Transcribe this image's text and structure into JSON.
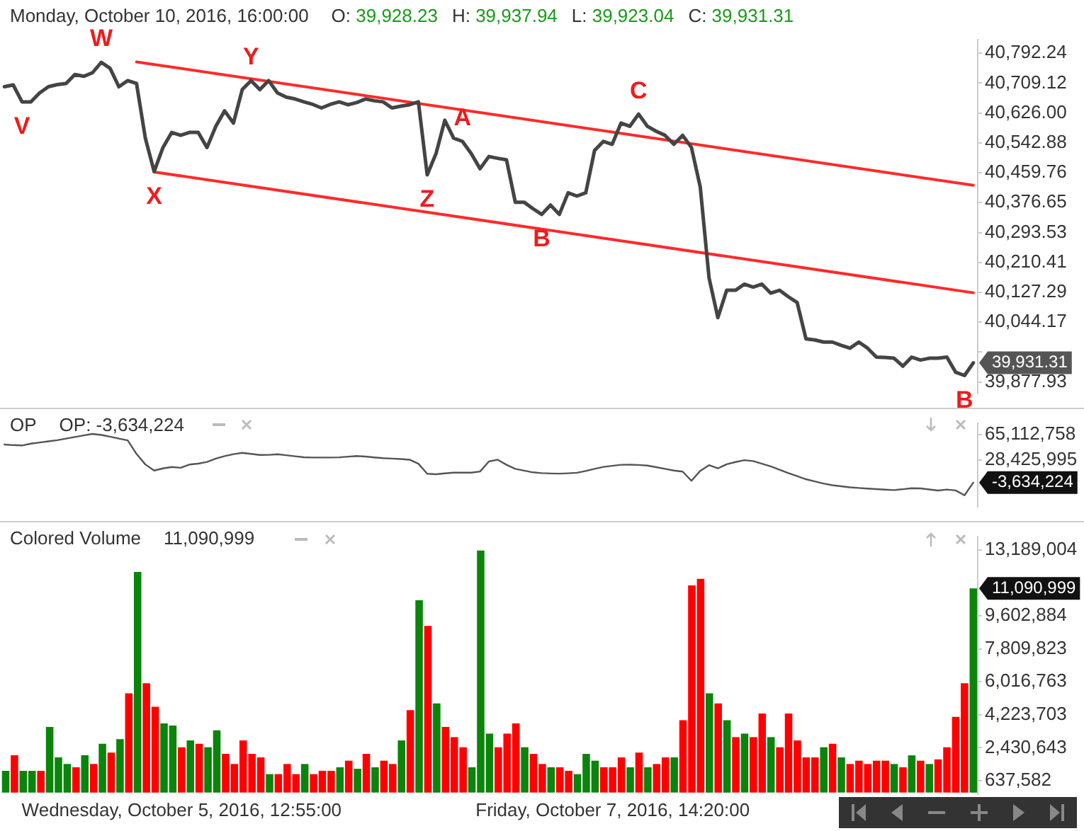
{
  "chart_data": [
    {
      "type": "line",
      "subtitle": "Monday, October 10, 2016, 16:00:00",
      "annotations": [
        "O: 39,928.23",
        "H: 39,937.94",
        "L: 39,923.04",
        "C: 39,931.31",
        "39,931.31"
      ],
      "categories": [
        null,
        null,
        null,
        null,
        null,
        null,
        null,
        null,
        null,
        null,
        null,
        null,
        null,
        null,
        null,
        null,
        null,
        null,
        null,
        null,
        null,
        null,
        null,
        null,
        null,
        null,
        null,
        null,
        null,
        null,
        null,
        null,
        null,
        null,
        null,
        null,
        null,
        null,
        null,
        null,
        null,
        null,
        null,
        null,
        null,
        null,
        null,
        null,
        null,
        null,
        null,
        null,
        null,
        null,
        null,
        null,
        null,
        null,
        null,
        null,
        null,
        null,
        null,
        null,
        null,
        null,
        null,
        null,
        null,
        null,
        null,
        null,
        null,
        null,
        null,
        null,
        null,
        null,
        null,
        null,
        null,
        null,
        null,
        null,
        null,
        null,
        null,
        null,
        null,
        null,
        null,
        null,
        null,
        null,
        null,
        null,
        null,
        null,
        null,
        null,
        null,
        null,
        null,
        null,
        null,
        null,
        null,
        null,
        null,
        null,
        null
      ],
      "series": [
        {
          "type": "line",
          "color": "#444444",
          "values": [
            40699,
            40704,
            40657,
            40657,
            40682,
            40699,
            40705,
            40708,
            40733,
            40728,
            40738,
            40767,
            40750,
            40699,
            40716,
            40708,
            40556,
            40463,
            40530,
            40572,
            40564,
            40572,
            40572,
            40530,
            40589,
            40632,
            40598,
            40691,
            40716,
            40691,
            40716,
            40682,
            40670,
            40665,
            40657,
            40650,
            40640,
            40650,
            40657,
            40649,
            40655,
            40665,
            40660,
            40657,
            40640,
            40645,
            40649,
            40657,
            40454,
            40513,
            40606,
            40556,
            40547,
            40513,
            40471,
            40505,
            40500,
            40496,
            40378,
            40378,
            40360,
            40344,
            40370,
            40344,
            40404,
            40395,
            40404,
            40522,
            40547,
            40539,
            40598,
            40589,
            40623,
            40589,
            40575,
            40564,
            40539,
            40564,
            40530,
            40420,
            40167,
            40057,
            40133,
            40133,
            40150,
            40142,
            40150,
            40125,
            40133,
            40115,
            40099,
            39998,
            39995,
            39989,
            39989,
            39980,
            39972,
            39989,
            39972,
            39947,
            39946,
            39944,
            39922,
            39947,
            39939,
            39944,
            39944,
            39947,
            39905,
            39896,
            39931.31
          ],
          "value_labels": [
            null,
            null,
            "V",
            null,
            null,
            null,
            null,
            null,
            null,
            null,
            null,
            "W",
            null,
            null,
            null,
            null,
            null,
            "X",
            null,
            null,
            null,
            null,
            null,
            null,
            null,
            null,
            null,
            null,
            "Y",
            null,
            null,
            null,
            null,
            null,
            null,
            null,
            null,
            null,
            null,
            null,
            null,
            null,
            null,
            null,
            null,
            null,
            null,
            null,
            "Z",
            null,
            null,
            null,
            "A",
            null,
            null,
            null,
            null,
            null,
            null,
            null,
            null,
            "B",
            null,
            null,
            null,
            null,
            null,
            null,
            null,
            null,
            null,
            null,
            "C",
            null,
            null,
            null,
            null,
            null,
            null,
            null,
            null,
            null,
            null,
            null,
            null,
            null,
            null,
            null,
            null,
            null,
            null,
            null,
            null,
            null,
            null,
            null,
            null,
            null,
            null,
            null,
            null,
            null,
            null,
            null,
            null,
            null,
            null,
            null,
            null,
            "B",
            null
          ]
        },
        {
          "type": "line",
          "color": "#ff2a2a",
          "values": [
            null,
            null,
            null,
            null,
            null,
            null,
            null,
            null,
            null,
            null,
            null,
            null,
            null,
            null,
            null,
            40768,
            null,
            null,
            null,
            null,
            null,
            null,
            null,
            null,
            null,
            null,
            null,
            null,
            null,
            null,
            null,
            null,
            null,
            null,
            null,
            null,
            null,
            null,
            null,
            null,
            null,
            null,
            null,
            null,
            null,
            null,
            null,
            null,
            null,
            null,
            null,
            null,
            null,
            null,
            null,
            null,
            null,
            null,
            null,
            null,
            null,
            null,
            null,
            null,
            null,
            null,
            null,
            null,
            null,
            null,
            null,
            null,
            null,
            null,
            null,
            null,
            null,
            null,
            null,
            null,
            null,
            null,
            null,
            null,
            null,
            null,
            null,
            null,
            null,
            null,
            null,
            null,
            null,
            null,
            null,
            null,
            null,
            null,
            null,
            null,
            null,
            null,
            null,
            null,
            null,
            null,
            null,
            null,
            null,
            null,
            40425
          ]
        },
        {
          "type": "line",
          "color": "#ff2a2a",
          "values": [
            null,
            null,
            null,
            null,
            null,
            null,
            null,
            null,
            null,
            null,
            null,
            null,
            null,
            null,
            null,
            null,
            null,
            40462,
            null,
            null,
            null,
            null,
            null,
            null,
            null,
            null,
            null,
            null,
            null,
            null,
            null,
            null,
            null,
            null,
            null,
            null,
            null,
            null,
            null,
            null,
            null,
            null,
            null,
            null,
            null,
            null,
            null,
            null,
            null,
            null,
            null,
            null,
            null,
            null,
            null,
            null,
            null,
            null,
            null,
            null,
            null,
            null,
            null,
            null,
            null,
            null,
            null,
            null,
            null,
            null,
            null,
            null,
            null,
            null,
            null,
            null,
            null,
            null,
            null,
            null,
            null,
            null,
            null,
            null,
            null,
            null,
            null,
            null,
            null,
            null,
            null,
            null,
            null,
            null,
            null,
            null,
            null,
            null,
            null,
            null,
            null,
            null,
            null,
            null,
            null,
            null,
            null,
            null,
            null,
            null,
            40126
          ]
        }
      ],
      "ylim": [
        39845,
        40830
      ],
      "yticks": [
        {
          "value": 40792.24,
          "label": "40,792.24"
        },
        {
          "value": 40709.12,
          "label": "40,709.12"
        },
        {
          "value": 40626.0,
          "label": "40,626.00"
        },
        {
          "value": 40542.88,
          "label": "40,542.88"
        },
        {
          "value": 40459.76,
          "label": "40,459.76"
        },
        {
          "value": 40376.65,
          "label": "40,376.65"
        },
        {
          "value": 40293.53,
          "label": "40,293.53"
        },
        {
          "value": 40210.41,
          "label": "40,210.41"
        },
        {
          "value": 40127.29,
          "label": "40,127.29"
        },
        {
          "value": 40044.17,
          "label": "40,044.17"
        },
        {
          "value": 39961.05,
          "label": null
        },
        {
          "value": 39877.93,
          "label": "39,877.93"
        }
      ],
      "tick_labels": "y",
      "grid": false,
      "marker": "none"
    },
    {
      "type": "line",
      "title": "OP",
      "annotations": [
        "OP: -3,634,224",
        "-3,634,224"
      ],
      "categories": [
        null,
        null,
        null,
        null,
        null,
        null,
        null,
        null,
        null,
        null,
        null,
        null,
        null,
        null,
        null,
        null,
        null,
        null,
        null,
        null,
        null,
        null,
        null,
        null,
        null,
        null,
        null,
        null,
        null,
        null,
        null,
        null,
        null,
        null,
        null,
        null,
        null,
        null,
        null,
        null,
        null,
        null,
        null,
        null,
        null,
        null,
        null,
        null,
        null,
        null,
        null,
        null,
        null,
        null,
        null,
        null,
        null,
        null,
        null,
        null,
        null,
        null,
        null,
        null,
        null,
        null,
        null,
        null,
        null,
        null,
        null,
        null,
        null,
        null,
        null,
        null,
        null,
        null,
        null,
        null,
        null,
        null,
        null,
        null,
        null,
        null,
        null,
        null,
        null,
        null,
        null,
        null,
        null,
        null,
        null,
        null,
        null,
        null,
        null,
        null,
        null,
        null,
        null,
        null,
        null,
        null,
        null,
        null,
        null,
        null,
        null
      ],
      "series": [
        {
          "type": "line",
          "color": "#555555",
          "values": [
            51100000,
            50200000,
            49700000,
            52300000,
            54000000,
            55600000,
            57300000,
            59600000,
            61800000,
            64100000,
            66300000,
            64800000,
            62400000,
            59600000,
            57000000,
            37500000,
            22400000,
            13600000,
            16700000,
            18700000,
            17600000,
            22200000,
            23500000,
            26000000,
            30800000,
            34300000,
            37100000,
            39100000,
            37500000,
            36000000,
            36100000,
            37000000,
            35600000,
            34100000,
            32700000,
            32300000,
            32300000,
            32300000,
            32600000,
            33600000,
            34500000,
            33700000,
            32500000,
            31400000,
            30800000,
            30100000,
            29200000,
            23400000,
            9000000,
            8200000,
            9600000,
            10500000,
            10500000,
            10500000,
            12200000,
            26600000,
            29200000,
            21900000,
            16000000,
            13500000,
            11000000,
            9900000,
            9400000,
            9100000,
            9700000,
            10400000,
            12900000,
            16100000,
            18800000,
            20300000,
            21900000,
            22000000,
            21600000,
            20700000,
            18400000,
            16000000,
            13600000,
            12100000,
            -1200000,
            13200000,
            21300000,
            16700000,
            22700000,
            25800000,
            28500000,
            27200000,
            23500000,
            19500000,
            14700000,
            10000000,
            5600000,
            1100000,
            -2000000,
            -5100000,
            -7500000,
            -9000000,
            -10600000,
            -11500000,
            -12400000,
            -13200000,
            -13900000,
            -14500000,
            -13200000,
            -11900000,
            -12100000,
            -13600000,
            -15200000,
            -13800000,
            -15000000,
            -22000000,
            -3634224
          ]
        }
      ],
      "ylim": [
        -39000000,
        82000000
      ],
      "yticks": [
        {
          "value": 65112758,
          "label": "65,112,758"
        },
        {
          "value": 28425995,
          "label": "28,425,995"
        }
      ],
      "tick_labels": "y",
      "grid": false,
      "marker": "none"
    },
    {
      "type": "bar",
      "title": "Colored Volume",
      "annotations": [
        "11,090,999",
        "11,090,999"
      ],
      "categories": [
        null,
        null,
        null,
        null,
        null,
        null,
        null,
        null,
        null,
        null,
        null,
        null,
        null,
        null,
        null,
        null,
        null,
        null,
        null,
        null,
        "Wednesday, October 5, 2016, 12:55:00",
        null,
        null,
        null,
        null,
        null,
        null,
        null,
        null,
        null,
        null,
        null,
        null,
        null,
        null,
        null,
        null,
        null,
        null,
        null,
        null,
        null,
        null,
        null,
        null,
        null,
        null,
        null,
        null,
        null,
        null,
        null,
        null,
        null,
        null,
        null,
        null,
        null,
        null,
        null,
        null,
        null,
        null,
        null,
        null,
        null,
        null,
        null,
        null,
        "Friday, October 7, 2016, 14:20:00",
        null,
        null,
        null,
        null,
        null,
        null,
        null,
        null,
        null,
        null,
        null,
        null,
        null,
        null,
        null,
        null,
        null,
        null,
        null,
        null,
        null,
        null,
        null,
        null,
        null,
        null,
        null,
        null,
        null,
        null,
        null,
        null,
        null,
        null,
        null,
        null,
        null,
        null,
        null,
        null,
        null
      ],
      "values": [
        1180000,
        2020000,
        1180000,
        1180000,
        1180000,
        3560000,
        1910000,
        1550000,
        1370000,
        2020000,
        1550000,
        2650000,
        2170000,
        2900000,
        5390000,
        11980000,
        5940000,
        4660000,
        3750000,
        3640000,
        2460000,
        2830000,
        2650000,
        2460000,
        3380000,
        2100000,
        1550000,
        2830000,
        2100000,
        1910000,
        1000000,
        1000000,
        1550000,
        1000000,
        1550000,
        1000000,
        1180000,
        1180000,
        1370000,
        1730000,
        1290000,
        2100000,
        1370000,
        1730000,
        1550000,
        2830000,
        4480000,
        10440000,
        9050000,
        4840000,
        3560000,
        3010000,
        2460000,
        1370000,
        13150000,
        3200000,
        2460000,
        3200000,
        3750000,
        2460000,
        2100000,
        1550000,
        1370000,
        1370000,
        1180000,
        1000000,
        2100000,
        1730000,
        1370000,
        1370000,
        1910000,
        1370000,
        2170000,
        1370000,
        1550000,
        1910000,
        1910000,
        3930000,
        11250000,
        11610000,
        5390000,
        4840000,
        3930000,
        3010000,
        3200000,
        3010000,
        4290000,
        3010000,
        2460000,
        4290000,
        2830000,
        1910000,
        1910000,
        2460000,
        2650000,
        1910000,
        1550000,
        1730000,
        1550000,
        1730000,
        1730000,
        1550000,
        1370000,
        2020000,
        1730000,
        1550000,
        1800000,
        2460000,
        4110000,
        5940000,
        11090999
      ],
      "colors": [
        "#0b840b",
        "#ff0000",
        "#0b840b",
        "#0b840b",
        "#ff0000",
        "#0b840b",
        "#0b840b",
        "#0b840b",
        "#ff0000",
        "#0b840b",
        "#ff0000",
        "#0b840b",
        "#ff0000",
        "#0b840b",
        "#ff0000",
        "#0b840b",
        "#ff0000",
        "#ff0000",
        "#0b840b",
        "#0b840b",
        "#ff0000",
        "#0b840b",
        "#ff0000",
        "#0b840b",
        "#0b840b",
        "#ff0000",
        "#ff0000",
        "#ff0000",
        "#ff0000",
        "#ff0000",
        "#0b840b",
        "#ff0000",
        "#ff0000",
        "#ff0000",
        "#0b840b",
        "#ff0000",
        "#ff0000",
        "#ff0000",
        "#0b840b",
        "#ff0000",
        "#0b840b",
        "#ff0000",
        "#0b840b",
        "#ff0000",
        "#ff0000",
        "#0b840b",
        "#ff0000",
        "#0b840b",
        "#ff0000",
        "#0b840b",
        "#ff0000",
        "#ff0000",
        "#ff0000",
        "#0b840b",
        "#0b840b",
        "#0b840b",
        "#ff0000",
        "#ff0000",
        "#ff0000",
        "#0b840b",
        "#ff0000",
        "#ff0000",
        "#0b840b",
        "#ff0000",
        "#ff0000",
        "#0b840b",
        "#0b840b",
        "#0b840b",
        "#ff0000",
        "#ff0000",
        "#ff0000",
        "#0b840b",
        "#ff0000",
        "#0b840b",
        "#ff0000",
        "#ff0000",
        "#0b840b",
        "#ff0000",
        "#ff0000",
        "#ff0000",
        "#0b840b",
        "#ff0000",
        "#0b840b",
        "#ff0000",
        "#0b840b",
        "#ff0000",
        "#ff0000",
        "#0b840b",
        "#ff0000",
        "#ff0000",
        "#ff0000",
        "#ff0000",
        "#ff0000",
        "#0b840b",
        "#ff0000",
        "#0b840b",
        "#ff0000",
        "#ff0000",
        "#ff0000",
        "#ff0000",
        "#ff0000",
        "#0b840b",
        "#ff0000",
        "#0b840b",
        "#ff0000",
        "#0b840b",
        "#ff0000",
        "#ff0000",
        "#ff0000",
        "#ff0000",
        "#0b840b"
      ],
      "ylim": [
        -90000,
        13920000
      ],
      "yticks": [
        {
          "value": 13189004,
          "label": "13,189,004"
        },
        {
          "value": 9602884,
          "label": "9,602,884"
        },
        {
          "value": 7809823,
          "label": "7,809,823"
        },
        {
          "value": 6016763,
          "label": "6,016,763"
        },
        {
          "value": 4223703,
          "label": "4,223,703"
        },
        {
          "value": 2430643,
          "label": "2,430,643"
        },
        {
          "value": 637582,
          "label": "637,582"
        }
      ],
      "grid": false
    }
  ]
}
